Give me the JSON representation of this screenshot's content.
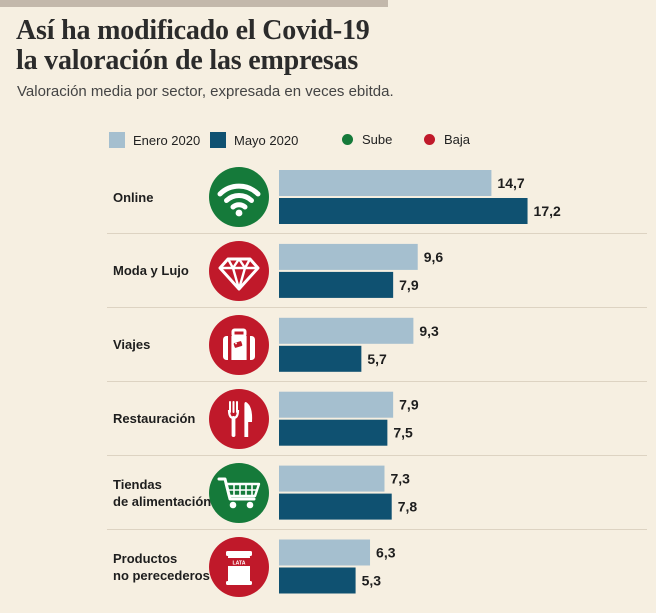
{
  "title": {
    "line1": "Así ha modificado el Covid-19",
    "line2": "la valoración de las empresas"
  },
  "subtitle": "Valoración media por sector, expresada en veces ebitda.",
  "legend": {
    "enero": "Enero 2020",
    "mayo": "Mayo 2020",
    "sube": "Sube",
    "baja": "Baja"
  },
  "colors": {
    "enero": "#a5bfcf",
    "mayo": "#0f5171",
    "sube": "#157a3a",
    "baja": "#c0192a"
  },
  "chart_data": {
    "type": "bar",
    "orientation": "horizontal",
    "title": "Así ha modificado el Covid-19 la valoración de las empresas",
    "subtitle": "Valoración media por sector, expresada en veces ebitda.",
    "categories": [
      {
        "lines": [
          "Online"
        ],
        "icon": "wifi-icon",
        "trend": "sube"
      },
      {
        "lines": [
          "Moda y Lujo"
        ],
        "icon": "diamond-icon",
        "trend": "baja"
      },
      {
        "lines": [
          "Viajes"
        ],
        "icon": "suitcase-icon",
        "trend": "baja"
      },
      {
        "lines": [
          "Restauración"
        ],
        "icon": "cutlery-icon",
        "trend": "baja"
      },
      {
        "lines": [
          "Tiendas",
          "de alimentación"
        ],
        "icon": "cart-icon",
        "trend": "sube"
      },
      {
        "lines": [
          "Productos",
          "no perecederos"
        ],
        "icon": "can-icon",
        "trend": "baja"
      }
    ],
    "series": [
      {
        "name": "Enero 2020",
        "values": [
          14.7,
          9.6,
          9.3,
          7.9,
          7.3,
          6.3
        ],
        "labels": [
          "14,7",
          "9,6",
          "9,3",
          "7,9",
          "7,3",
          "6,3"
        ]
      },
      {
        "name": "Mayo 2020",
        "values": [
          17.2,
          7.9,
          5.7,
          7.5,
          7.8,
          5.3
        ],
        "labels": [
          "17,2",
          "7,9",
          "5,7",
          "7,5",
          "7,8",
          "5,3"
        ]
      }
    ],
    "can_label": "LATA",
    "xlim": [
      0,
      17.2
    ],
    "grid": false,
    "legend_position": "top"
  }
}
